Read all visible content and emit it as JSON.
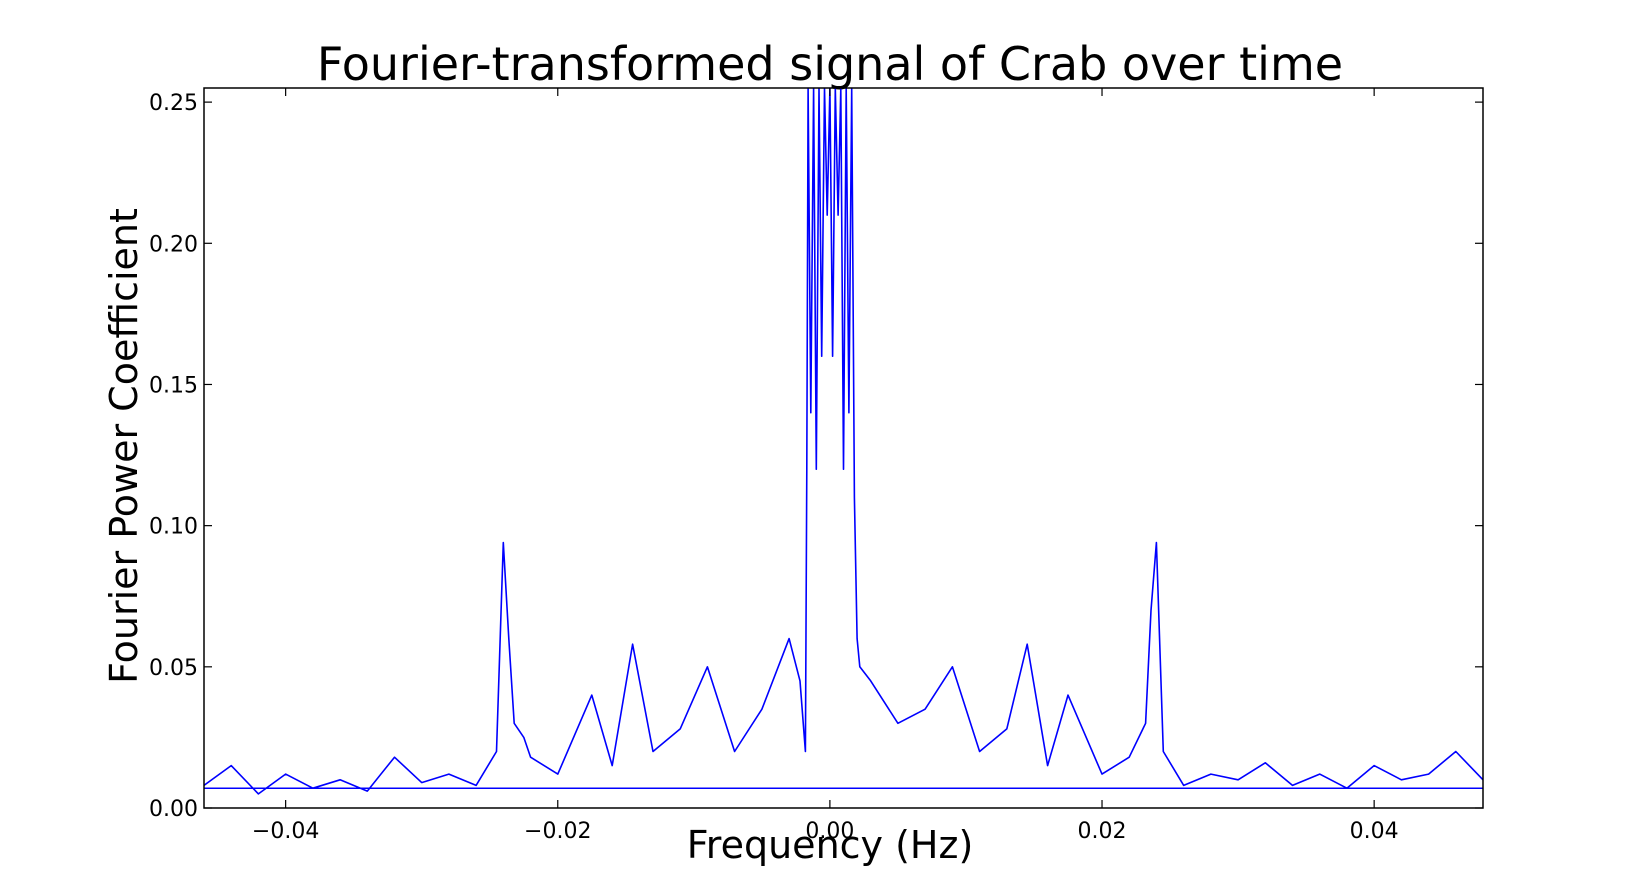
{
  "chart_data": {
    "type": "line",
    "title": "Fourier-transformed signal of Crab over time",
    "xlabel": "Frequency (Hz)",
    "ylabel": "Fourier Power Coefficient",
    "xlim": [
      -0.046,
      0.048
    ],
    "ylim": [
      0.0,
      0.255
    ],
    "x_ticks": [
      -0.04,
      -0.02,
      0.0,
      0.02,
      0.04
    ],
    "x_tick_labels": [
      "−0.04",
      "−0.02",
      "0.00",
      "0.02",
      "0.04"
    ],
    "y_ticks": [
      0.0,
      0.05,
      0.1,
      0.15,
      0.2,
      0.25
    ],
    "y_tick_labels": [
      "0.00",
      "0.05",
      "0.10",
      "0.15",
      "0.20",
      "0.25"
    ],
    "grid": false,
    "line_color": "#0000ff",
    "series": [
      {
        "x": [
          -0.046,
          -0.044,
          -0.042,
          -0.04,
          -0.038,
          -0.036,
          -0.034,
          -0.032,
          -0.03,
          -0.028,
          -0.026,
          -0.0245,
          -0.024,
          -0.0236,
          -0.0232,
          -0.0225,
          -0.022,
          -0.02,
          -0.0175,
          -0.016,
          -0.0145,
          -0.013,
          -0.011,
          -0.009,
          -0.007,
          -0.005,
          -0.003,
          -0.0022,
          -0.0018,
          -0.0017,
          -0.0016,
          -0.0014,
          -0.0012,
          -0.001,
          -0.0008,
          -0.0006,
          -0.0004,
          -0.0002,
          0.0,
          0.0002,
          0.0004,
          0.0006,
          0.0008,
          0.001,
          0.0012,
          0.0014,
          0.0016,
          0.0018,
          0.002,
          0.0022,
          0.003,
          0.005,
          0.007,
          0.009,
          0.011,
          0.013,
          0.0145,
          0.016,
          0.0175,
          0.02,
          0.022,
          0.0232,
          0.0236,
          0.024,
          0.0245,
          0.026,
          0.028,
          0.03,
          0.032,
          0.034,
          0.036,
          0.038,
          0.04,
          0.042,
          0.044,
          0.046,
          0.048
        ],
        "y": [
          0.008,
          0.015,
          0.005,
          0.012,
          0.007,
          0.01,
          0.006,
          0.018,
          0.009,
          0.012,
          0.008,
          0.02,
          0.094,
          0.06,
          0.03,
          0.025,
          0.018,
          0.012,
          0.04,
          0.015,
          0.058,
          0.02,
          0.028,
          0.05,
          0.02,
          0.035,
          0.06,
          0.045,
          0.02,
          0.12,
          0.255,
          0.14,
          0.255,
          0.12,
          0.255,
          0.16,
          0.255,
          0.21,
          0.255,
          0.16,
          0.255,
          0.21,
          0.255,
          0.12,
          0.255,
          0.14,
          0.255,
          0.11,
          0.06,
          0.05,
          0.045,
          0.03,
          0.035,
          0.05,
          0.02,
          0.028,
          0.058,
          0.015,
          0.04,
          0.012,
          0.018,
          0.03,
          0.07,
          0.094,
          0.02,
          0.008,
          0.012,
          0.01,
          0.016,
          0.008,
          0.012,
          0.007,
          0.015,
          0.01,
          0.012,
          0.02,
          0.01
        ]
      }
    ],
    "baseline_y": 0.007
  }
}
